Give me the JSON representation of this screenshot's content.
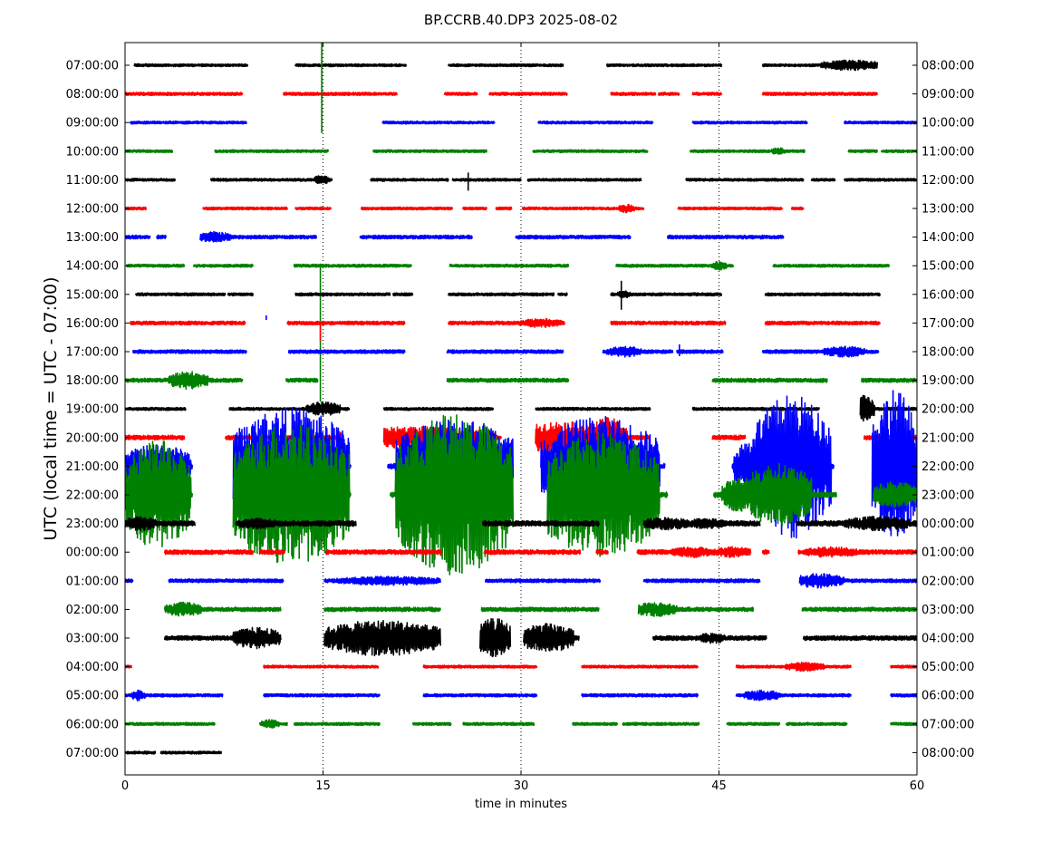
{
  "chart_data": {
    "type": "line",
    "title": "BP.CCRB.40.DP3 2025-08-02",
    "xlabel": "time in minutes",
    "ylabel": "UTC (local time = UTC - 07:00)",
    "xlim": [
      0,
      60
    ],
    "x_ticks": [
      0,
      15,
      30,
      45,
      60
    ],
    "vertical_dotted_grid_at": [
      15,
      30,
      45
    ],
    "left_labels": [
      "07:00:00",
      "08:00:00",
      "09:00:00",
      "10:00:00",
      "11:00:00",
      "12:00:00",
      "13:00:00",
      "14:00:00",
      "15:00:00",
      "16:00:00",
      "17:00:00",
      "18:00:00",
      "19:00:00",
      "20:00:00",
      "21:00:00",
      "22:00:00",
      "23:00:00",
      "00:00:00",
      "01:00:00",
      "02:00:00",
      "03:00:00",
      "04:00:00",
      "05:00:00",
      "06:00:00",
      "07:00:00"
    ],
    "right_labels": [
      "08:00:00",
      "09:00:00",
      "10:00:00",
      "11:00:00",
      "12:00:00",
      "13:00:00",
      "14:00:00",
      "15:00:00",
      "16:00:00",
      "17:00:00",
      "18:00:00",
      "19:00:00",
      "20:00:00",
      "21:00:00",
      "22:00:00",
      "23:00:00",
      "00:00:00",
      "01:00:00",
      "02:00:00",
      "03:00:00",
      "04:00:00",
      "05:00:00",
      "06:00:00",
      "07:00:00",
      "08:00:00"
    ],
    "color_cycle": [
      "#000000",
      "#ff0000",
      "#0000ff",
      "#008000"
    ],
    "rows": [
      {
        "segments": [
          [
            0.7,
            9.3
          ],
          [
            12.9,
            21.3
          ],
          [
            24.5,
            33.2
          ],
          [
            36.5,
            45.2
          ],
          [
            48.3,
            57.0
          ]
        ],
        "amp": 1.5,
        "bursts": [
          [
            55.0,
            2.3,
            6
          ]
        ],
        "spikes": []
      },
      {
        "segments": [
          [
            0.0,
            8.9
          ],
          [
            12.0,
            20.6
          ],
          [
            24.2,
            26.7
          ],
          [
            27.6,
            33.5
          ],
          [
            36.8,
            40.2
          ],
          [
            40.4,
            42.0
          ],
          [
            43.0,
            45.2
          ],
          [
            48.3,
            57.0
          ]
        ],
        "amp": 1.7,
        "bursts": [],
        "spikes": []
      },
      {
        "segments": [
          [
            0.4,
            9.2
          ],
          [
            19.5,
            28.0
          ],
          [
            31.3,
            40.0
          ],
          [
            43.0,
            51.7
          ],
          [
            54.5,
            60.0
          ]
        ],
        "amp": 1.5,
        "bursts": [],
        "spikes": []
      },
      {
        "segments": [
          [
            0.0,
            3.6
          ],
          [
            6.8,
            15.4
          ],
          [
            18.8,
            27.4
          ],
          [
            30.9,
            39.6
          ],
          [
            42.8,
            51.5
          ],
          [
            54.8,
            57.0
          ],
          [
            57.3,
            60.0
          ]
        ],
        "amp": 1.5,
        "bursts": [
          [
            49.5,
            0.5,
            4
          ]
        ],
        "spikes": [
          [
            14.9,
            160,
            -20
          ]
        ]
      },
      {
        "segments": [
          [
            0.0,
            3.8
          ],
          [
            6.5,
            15.7
          ],
          [
            18.6,
            24.5
          ],
          [
            24.8,
            30.0
          ],
          [
            30.5,
            39.1
          ],
          [
            42.5,
            51.4
          ],
          [
            52.0,
            53.8
          ],
          [
            54.5,
            60.0
          ]
        ],
        "amp": 1.5,
        "bursts": [
          [
            14.9,
            0.6,
            5
          ]
        ],
        "spikes": [
          [
            26.0,
            8,
            12
          ]
        ]
      },
      {
        "segments": [
          [
            0.0,
            1.6
          ],
          [
            5.9,
            12.3
          ],
          [
            12.9,
            15.6
          ],
          [
            17.9,
            24.8
          ],
          [
            25.6,
            27.4
          ],
          [
            28.1,
            29.3
          ],
          [
            30.1,
            39.3
          ],
          [
            41.9,
            49.8
          ],
          [
            50.5,
            51.4
          ]
        ],
        "amp": 1.5,
        "bursts": [
          [
            38.0,
            0.6,
            5
          ]
        ],
        "spikes": []
      },
      {
        "segments": [
          [
            0.0,
            1.9
          ],
          [
            2.4,
            3.1
          ],
          [
            5.7,
            14.5
          ],
          [
            17.8,
            26.3
          ],
          [
            29.6,
            38.3
          ],
          [
            41.1,
            49.9
          ]
        ],
        "amp": 2.0,
        "bursts": [
          [
            6.8,
            1.2,
            6
          ]
        ],
        "spikes": []
      },
      {
        "segments": [
          [
            0.1,
            4.5
          ],
          [
            5.2,
            9.7
          ],
          [
            12.8,
            21.7
          ],
          [
            24.6,
            33.6
          ],
          [
            37.2,
            46.1
          ],
          [
            49.1,
            57.9
          ]
        ],
        "amp": 1.6,
        "bursts": [
          [
            45.0,
            0.6,
            5
          ]
        ],
        "spikes": [
          [
            14.8,
            0,
            150
          ]
        ]
      },
      {
        "segments": [
          [
            0.8,
            7.6
          ],
          [
            7.8,
            9.7
          ],
          [
            12.9,
            20.1
          ],
          [
            20.3,
            21.8
          ],
          [
            24.5,
            32.5
          ],
          [
            32.8,
            33.5
          ],
          [
            36.8,
            45.2
          ],
          [
            48.5,
            57.2
          ]
        ],
        "amp": 1.6,
        "bursts": [
          [
            37.8,
            0.5,
            4
          ]
        ],
        "spikes": [
          [
            37.6,
            15,
            17
          ]
        ]
      },
      {
        "segments": [
          [
            0.4,
            9.1
          ],
          [
            12.3,
            21.2
          ],
          [
            24.5,
            33.3
          ],
          [
            36.8,
            45.5
          ],
          [
            48.5,
            57.2
          ]
        ],
        "amp": 2.0,
        "bursts": [
          [
            31.5,
            1.6,
            5
          ]
        ],
        "spikes": [
          [
            14.8,
            0,
            20
          ]
        ]
      },
      {
        "segments": [
          [
            0.6,
            9.2
          ],
          [
            12.4,
            21.2
          ],
          [
            24.4,
            33.2
          ],
          [
            36.2,
            41.5
          ],
          [
            41.8,
            45.3
          ],
          [
            48.3,
            57.1
          ]
        ],
        "amp": 2.0,
        "bursts": [
          [
            37.8,
            1.3,
            6
          ],
          [
            54.5,
            1.6,
            6
          ]
        ],
        "spikes": [
          [
            10.7,
            35,
            -40
          ],
          [
            42.0,
            8,
            5
          ]
        ]
      },
      {
        "segments": [
          [
            0.0,
            8.9
          ],
          [
            12.2,
            14.6
          ],
          [
            24.4,
            33.6
          ],
          [
            44.5,
            53.2
          ],
          [
            55.8,
            60.0
          ]
        ],
        "amp": 2.2,
        "bursts": [
          [
            4.8,
            1.5,
            10
          ]
        ],
        "spikes": []
      },
      {
        "segments": [
          [
            0.0,
            4.6
          ],
          [
            7.9,
            17.0
          ],
          [
            19.6,
            27.9
          ],
          [
            31.1,
            39.8
          ],
          [
            43.0,
            52.6
          ],
          [
            55.7,
            60.0
          ]
        ],
        "amp": 1.6,
        "bursts": [
          [
            15.0,
            1.3,
            8
          ],
          [
            55.8,
            1.0,
            15
          ]
        ],
        "spikes": []
      },
      {
        "segments": [
          [
            0.0,
            4.5
          ],
          [
            7.6,
            16.4
          ],
          [
            19.6,
            28.5
          ],
          [
            31.1,
            39.7
          ],
          [
            44.5,
            47.0
          ],
          [
            56.0,
            60.0
          ]
        ],
        "amp": 2.5,
        "bursts": [
          [
            22.0,
            6.0,
            12
          ],
          [
            33.0,
            3.0,
            18
          ],
          [
            36.5,
            1.6,
            22
          ]
        ],
        "spikes": []
      },
      {
        "segments": [
          [
            0.0,
            5.1
          ],
          [
            8.2,
            17.1
          ],
          [
            19.9,
            29.4
          ],
          [
            31.5,
            40.9
          ],
          [
            46.0,
            53.7
          ],
          [
            56.6,
            60.0
          ]
        ],
        "amp": 3.0,
        "bursts": [
          [
            2.5,
            2.5,
            25
          ],
          [
            12.5,
            4.5,
            65
          ],
          [
            25.0,
            4.5,
            55
          ],
          [
            36.0,
            4.5,
            55
          ],
          [
            47.5,
            1.4,
            30
          ],
          [
            50.5,
            3.0,
            80
          ],
          [
            58.3,
            1.7,
            85
          ]
        ],
        "spikes": []
      },
      {
        "segments": [
          [
            0.0,
            5.1
          ],
          [
            8.2,
            17.1
          ],
          [
            20.1,
            29.4
          ],
          [
            32.0,
            41.1
          ],
          [
            44.6,
            53.9
          ],
          [
            56.7,
            60.0
          ]
        ],
        "amp": 3.0,
        "bursts": [
          [
            2.5,
            2.5,
            60
          ],
          [
            12.5,
            4.5,
            80
          ],
          [
            25.0,
            4.5,
            90
          ],
          [
            36.0,
            4.5,
            70
          ],
          [
            46.5,
            1.3,
            20
          ],
          [
            49.5,
            2.5,
            35
          ],
          [
            58.3,
            1.7,
            15
          ]
        ],
        "spikes": []
      },
      {
        "segments": [
          [
            0.0,
            5.3
          ],
          [
            8.4,
            17.5
          ],
          [
            27.1,
            35.9
          ],
          [
            39.3,
            48.1
          ],
          [
            50.9,
            60.0
          ]
        ],
        "amp": 3.0,
        "bursts": [
          [
            1.2,
            1.2,
            8
          ],
          [
            10.0,
            1.5,
            6
          ],
          [
            41.0,
            1.8,
            7
          ],
          [
            44.0,
            1.5,
            6
          ],
          [
            57.0,
            2.5,
            8
          ]
        ],
        "spikes": []
      },
      {
        "segments": [
          [
            3.0,
            9.7
          ],
          [
            10.2,
            12.1
          ],
          [
            15.2,
            24.0
          ],
          [
            27.2,
            34.5
          ],
          [
            35.7,
            36.6
          ],
          [
            38.8,
            47.4
          ],
          [
            48.3,
            48.8
          ],
          [
            51.0,
            60.0
          ]
        ],
        "amp": 2.5,
        "bursts": [
          [
            43.0,
            1.6,
            6
          ],
          [
            46.0,
            1.4,
            6
          ],
          [
            53.5,
            2.0,
            6
          ]
        ],
        "spikes": []
      },
      {
        "segments": [
          [
            0.0,
            0.6
          ],
          [
            3.3,
            12.0
          ],
          [
            15.1,
            23.9
          ],
          [
            27.3,
            36.0
          ],
          [
            39.3,
            48.1
          ],
          [
            51.1,
            60.0
          ]
        ],
        "amp": 2.0,
        "bursts": [
          [
            20.0,
            4.0,
            5
          ],
          [
            52.5,
            2.0,
            8
          ]
        ],
        "spikes": []
      },
      {
        "segments": [
          [
            3.0,
            11.8
          ],
          [
            15.1,
            23.9
          ],
          [
            27.0,
            35.9
          ],
          [
            38.9,
            47.6
          ],
          [
            51.3,
            60.0
          ]
        ],
        "amp": 2.3,
        "bursts": [
          [
            4.4,
            1.4,
            8
          ],
          [
            40.2,
            1.6,
            8
          ]
        ],
        "spikes": []
      },
      {
        "segments": [
          [
            3.0,
            11.8
          ],
          [
            15.1,
            23.9
          ],
          [
            26.9,
            29.2
          ],
          [
            30.2,
            34.4
          ],
          [
            40.0,
            48.6
          ],
          [
            51.4,
            60.0
          ]
        ],
        "amp": 2.5,
        "bursts": [
          [
            10.0,
            1.8,
            12
          ],
          [
            19.5,
            4.5,
            20
          ],
          [
            28.0,
            1.3,
            22
          ],
          [
            32.0,
            2.0,
            16
          ],
          [
            44.5,
            1.0,
            6
          ]
        ],
        "spikes": []
      },
      {
        "segments": [
          [
            0.0,
            0.5
          ],
          [
            10.5,
            19.2
          ],
          [
            22.6,
            31.2
          ],
          [
            34.6,
            43.4
          ],
          [
            46.3,
            55.0
          ],
          [
            58.0,
            60.0
          ]
        ],
        "amp": 1.5,
        "bursts": [
          [
            51.5,
            1.5,
            5
          ]
        ],
        "spikes": []
      },
      {
        "segments": [
          [
            0.0,
            7.4
          ],
          [
            10.5,
            19.3
          ],
          [
            22.6,
            31.2
          ],
          [
            34.6,
            43.4
          ],
          [
            46.3,
            55.0
          ],
          [
            58.0,
            60.0
          ]
        ],
        "amp": 1.7,
        "bursts": [
          [
            1.0,
            0.5,
            6
          ],
          [
            48.3,
            1.4,
            6
          ]
        ],
        "spikes": []
      },
      {
        "segments": [
          [
            0.0,
            6.8
          ],
          [
            10.2,
            12.3
          ],
          [
            12.8,
            19.3
          ],
          [
            21.8,
            24.7
          ],
          [
            25.6,
            31.0
          ],
          [
            33.9,
            37.3
          ],
          [
            37.7,
            43.5
          ],
          [
            45.6,
            49.6
          ],
          [
            50.1,
            54.7
          ],
          [
            58.0,
            60.0
          ]
        ],
        "amp": 1.6,
        "bursts": [
          [
            11.0,
            0.7,
            5
          ]
        ],
        "spikes": []
      },
      {
        "segments": [
          [
            0.0,
            2.3
          ],
          [
            2.7,
            7.3
          ]
        ],
        "amp": 1.5,
        "bursts": [],
        "spikes": []
      }
    ]
  }
}
